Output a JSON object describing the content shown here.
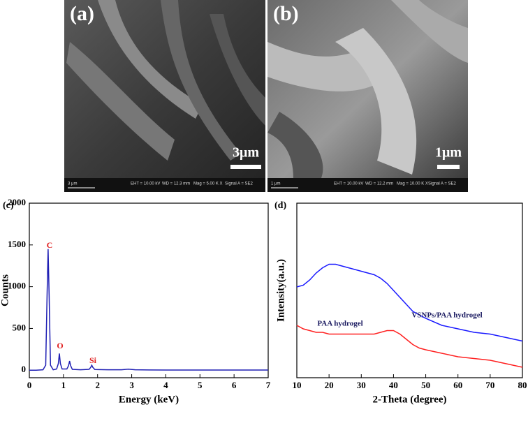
{
  "images": [
    {
      "label": "(a)",
      "scale_bar": "3μm",
      "info": [
        "3 μm",
        "EHT = 10.00 kV",
        "WD = 12.3 mm",
        "Mag = 5.00 K X",
        "Signal A = SE2"
      ]
    },
    {
      "label": "(b)",
      "scale_bar": "1μm",
      "info": [
        "1 μm",
        "EHT = 10.00 kV",
        "WD = 12.2 mm",
        "Mag = 10.00 K X",
        "Signal A = SE2"
      ]
    }
  ],
  "chart_data": [
    {
      "type": "line",
      "panel_label": "(c)",
      "x_label": "Energy (keV)",
      "y_label": "Counts",
      "color": "#1f1fb4",
      "x": [
        0,
        0.2,
        0.4,
        0.48,
        0.52,
        0.55,
        0.58,
        0.62,
        0.7,
        0.8,
        0.85,
        0.88,
        0.91,
        0.96,
        1.1,
        1.15,
        1.18,
        1.21,
        1.26,
        1.5,
        1.75,
        1.8,
        1.83,
        1.86,
        1.92,
        2.3,
        2.7,
        2.9,
        3.1,
        3.5,
        4,
        5,
        6,
        7
      ],
      "values": [
        0,
        0,
        5,
        60,
        900,
        1450,
        900,
        60,
        5,
        15,
        80,
        200,
        80,
        15,
        15,
        55,
        110,
        55,
        10,
        5,
        10,
        35,
        60,
        35,
        8,
        5,
        5,
        12,
        5,
        3,
        2,
        2,
        2,
        2
      ],
      "peak_labels": [
        "C",
        "O",
        "Si"
      ],
      "xlim": [
        0,
        7
      ],
      "xticks": [
        0,
        1,
        2,
        3,
        4,
        5,
        6,
        7
      ],
      "ylim": [
        -90,
        2000
      ],
      "yticks": [
        0,
        500,
        1000,
        1500,
        2000
      ]
    },
    {
      "type": "line",
      "panel_label": "(d)",
      "x_label": "2-Theta (degree)",
      "y_label": "Intensity(a.u.)",
      "x": [
        10,
        12,
        14,
        16,
        18,
        20,
        22,
        24,
        26,
        28,
        30,
        32,
        34,
        36,
        38,
        40,
        42,
        44,
        46,
        48,
        50,
        55,
        60,
        65,
        70,
        75,
        80
      ],
      "series": [
        {
          "name": "VSNPs/PAA hydrogel",
          "color": "#1a1aff",
          "values": [
            52,
            53,
            56,
            60,
            63,
            65,
            65,
            64,
            63,
            62,
            61,
            60,
            59,
            57,
            54,
            50,
            46,
            42,
            38,
            36,
            34,
            30,
            28,
            26,
            25,
            23,
            21
          ]
        },
        {
          "name": "PAA hydrogel",
          "color": "#ff2020",
          "values": [
            30,
            28,
            27,
            26,
            26,
            25,
            25,
            25,
            25,
            25,
            25,
            25,
            25,
            26,
            27,
            27,
            25,
            22,
            19,
            17,
            16,
            14,
            12,
            11,
            10,
            8,
            6
          ]
        }
      ],
      "xlim": [
        10,
        80
      ],
      "xticks": [
        10,
        20,
        30,
        40,
        50,
        60,
        70,
        80
      ],
      "ylim": [
        0,
        100
      ]
    }
  ]
}
